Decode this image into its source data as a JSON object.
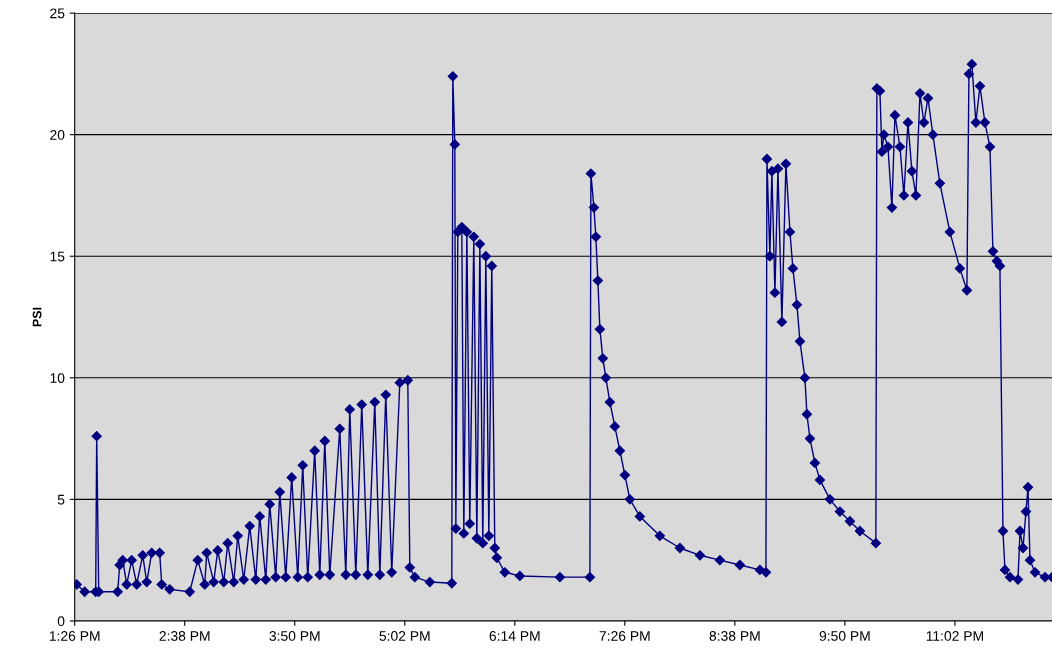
{
  "chart_data": {
    "type": "line",
    "ylabel": "PSI",
    "marker": "diamond",
    "line_style": "solid",
    "grid": "y",
    "legend": false,
    "xlim": [
      13.433,
      24.092
    ],
    "ylim": [
      0,
      25
    ],
    "yticks": [
      0,
      5,
      10,
      15,
      20,
      25
    ],
    "xticks": [
      {
        "value": 13.433,
        "label": "1:26 PM"
      },
      {
        "value": 14.633,
        "label": "2:38 PM"
      },
      {
        "value": 15.833,
        "label": "3:50 PM"
      },
      {
        "value": 17.033,
        "label": "5:02 PM"
      },
      {
        "value": 18.233,
        "label": "6:14 PM"
      },
      {
        "value": 19.433,
        "label": "7:26 PM"
      },
      {
        "value": 20.633,
        "label": "8:38 PM"
      },
      {
        "value": 21.833,
        "label": "9:50 PM"
      },
      {
        "value": 23.033,
        "label": "11:02 PM"
      }
    ],
    "series": [
      {
        "color": "#000080",
        "x": [
          13.455,
          13.542,
          13.662,
          13.673,
          13.695,
          13.902,
          13.924,
          13.957,
          14.0,
          14.055,
          14.109,
          14.175,
          14.219,
          14.273,
          14.36,
          14.382,
          14.469,
          14.688,
          14.775,
          14.851,
          14.873,
          14.949,
          14.993,
          15.059,
          15.102,
          15.168,
          15.211,
          15.277,
          15.342,
          15.408,
          15.451,
          15.517,
          15.56,
          15.626,
          15.67,
          15.735,
          15.8,
          15.866,
          15.92,
          15.975,
          16.051,
          16.106,
          16.161,
          16.215,
          16.324,
          16.39,
          16.433,
          16.499,
          16.564,
          16.63,
          16.706,
          16.761,
          16.826,
          16.891,
          16.979,
          17.066,
          17.088,
          17.143,
          17.306,
          17.546,
          17.557,
          17.579,
          17.59,
          17.612,
          17.655,
          17.677,
          17.71,
          17.742,
          17.786,
          17.819,
          17.852,
          17.884,
          17.917,
          17.95,
          17.982,
          18.015,
          18.037,
          18.124,
          18.288,
          18.725,
          19.052,
          19.063,
          19.096,
          19.117,
          19.139,
          19.161,
          19.193,
          19.226,
          19.27,
          19.324,
          19.379,
          19.434,
          19.488,
          19.597,
          19.815,
          20.034,
          20.252,
          20.47,
          20.688,
          20.906,
          20.972,
          20.983,
          21.015,
          21.037,
          21.07,
          21.103,
          21.146,
          21.19,
          21.234,
          21.266,
          21.31,
          21.343,
          21.397,
          21.419,
          21.452,
          21.506,
          21.561,
          21.67,
          21.779,
          21.888,
          21.997,
          22.171,
          22.182,
          22.215,
          22.237,
          22.259,
          22.303,
          22.346,
          22.379,
          22.434,
          22.477,
          22.521,
          22.564,
          22.608,
          22.652,
          22.695,
          22.739,
          22.793,
          22.869,
          22.978,
          23.087,
          23.164,
          23.186,
          23.218,
          23.262,
          23.306,
          23.36,
          23.415,
          23.448,
          23.491,
          23.524,
          23.557,
          23.579,
          23.634,
          23.721,
          23.743,
          23.776,
          23.808,
          23.83,
          23.852,
          23.907,
          24.016,
          24.092
        ],
        "values": [
          1.5,
          1.2,
          1.2,
          7.6,
          1.2,
          1.2,
          2.3,
          2.5,
          1.5,
          2.5,
          1.5,
          2.7,
          1.6,
          2.8,
          2.8,
          1.5,
          1.3,
          1.2,
          2.5,
          1.5,
          2.8,
          1.6,
          2.9,
          1.6,
          3.2,
          1.6,
          3.5,
          1.7,
          3.9,
          1.7,
          4.3,
          1.7,
          4.8,
          1.8,
          5.3,
          1.8,
          5.9,
          1.8,
          6.4,
          1.8,
          7.0,
          1.9,
          7.4,
          1.9,
          7.9,
          1.9,
          8.7,
          1.9,
          8.9,
          1.9,
          9.0,
          1.9,
          9.3,
          2.0,
          9.8,
          9.9,
          2.2,
          1.8,
          1.6,
          1.55,
          22.4,
          19.6,
          3.8,
          16.0,
          16.2,
          3.6,
          16.0,
          4.0,
          15.8,
          3.4,
          15.5,
          3.2,
          15.0,
          3.5,
          14.6,
          3.0,
          2.6,
          2.0,
          1.85,
          1.8,
          1.8,
          18.4,
          17.0,
          15.8,
          14.0,
          12.0,
          10.8,
          10.0,
          9.0,
          8.0,
          7.0,
          6.0,
          5.0,
          4.3,
          3.5,
          3.0,
          2.7,
          2.5,
          2.3,
          2.1,
          2.0,
          19.0,
          15.0,
          18.5,
          13.5,
          18.6,
          12.3,
          18.8,
          16.0,
          14.5,
          13.0,
          11.5,
          10.0,
          8.5,
          7.5,
          6.5,
          5.8,
          5.0,
          4.5,
          4.1,
          3.7,
          3.2,
          21.9,
          21.8,
          19.3,
          20.0,
          19.5,
          17.0,
          20.8,
          19.5,
          17.5,
          20.5,
          18.5,
          17.5,
          21.7,
          20.5,
          21.5,
          20.0,
          18.0,
          16.0,
          14.5,
          13.6,
          22.5,
          22.9,
          20.5,
          22.0,
          20.5,
          19.5,
          15.2,
          14.8,
          14.6,
          3.7,
          2.1,
          1.8,
          1.7,
          3.7,
          3.0,
          4.5,
          5.5,
          2.5,
          2.0,
          1.8,
          1.8
        ]
      }
    ]
  }
}
